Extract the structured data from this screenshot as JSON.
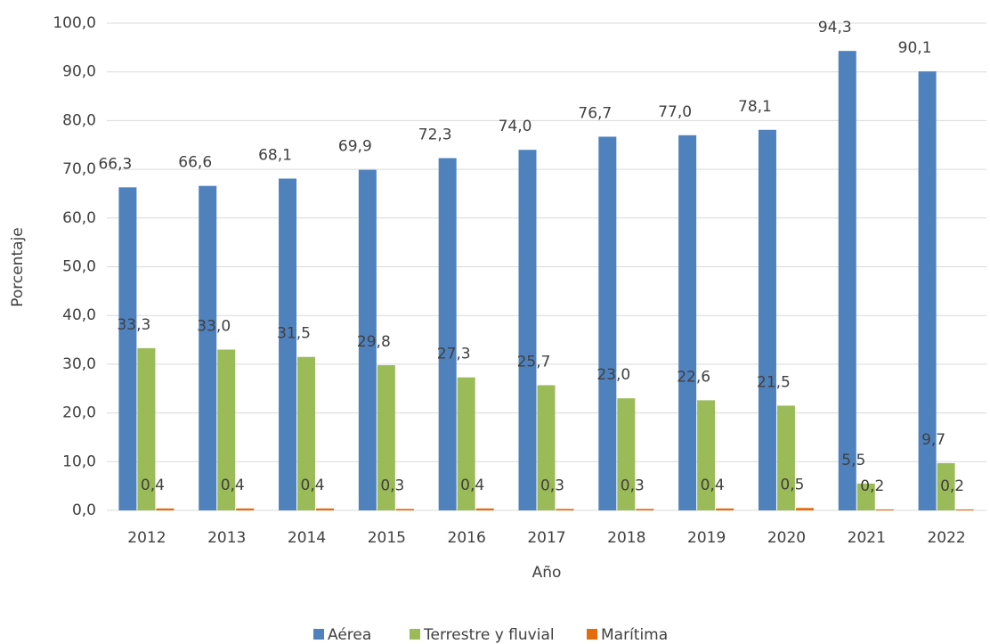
{
  "chart_data": {
    "type": "bar",
    "x_label": "Año",
    "y_label": "Porcentaje",
    "categories": [
      "2012",
      "2013",
      "2014",
      "2015",
      "2016",
      "2017",
      "2018",
      "2019",
      "2020",
      "2021",
      "2022"
    ],
    "series": [
      {
        "name": "Aérea",
        "color": "#4f81bd",
        "values": [
          66.3,
          66.6,
          68.1,
          69.9,
          72.3,
          74.0,
          76.7,
          77.0,
          78.1,
          94.3,
          90.1
        ],
        "value_labels": [
          "66,3",
          "66,6",
          "68,1",
          "69,9",
          "72,3",
          "74,0",
          "76,7",
          "77,0",
          "78,1",
          "94,3",
          "90,1"
        ]
      },
      {
        "name": "Terrestre y fluvial",
        "color": "#9bbb59",
        "values": [
          33.3,
          33.0,
          31.5,
          29.8,
          27.3,
          25.7,
          23.0,
          22.6,
          21.5,
          5.5,
          9.7
        ],
        "value_labels": [
          "33,3",
          "33,0",
          "31,5",
          "29,8",
          "27,3",
          "25,7",
          "23,0",
          "22,6",
          "21,5",
          "5,5",
          "9,7"
        ]
      },
      {
        "name": "Marítima",
        "color": "#e46c0a",
        "values": [
          0.4,
          0.4,
          0.4,
          0.3,
          0.4,
          0.3,
          0.3,
          0.4,
          0.5,
          0.2,
          0.2
        ],
        "value_labels": [
          "0,4",
          "0,4",
          "0,4",
          "0,3",
          "0,4",
          "0,3",
          "0,3",
          "0,4",
          "0,5",
          "0,2",
          "0,2"
        ]
      }
    ],
    "ylim": [
      0,
      100
    ],
    "yticks": [
      {
        "value": 0,
        "label": "0,0"
      },
      {
        "value": 10,
        "label": "10,0"
      },
      {
        "value": 20,
        "label": "20,0"
      },
      {
        "value": 30,
        "label": "30,0"
      },
      {
        "value": 40,
        "label": "40,0"
      },
      {
        "value": 50,
        "label": "50,0"
      },
      {
        "value": 60,
        "label": "60,0"
      },
      {
        "value": 70,
        "label": "70,0"
      },
      {
        "value": 80,
        "label": "80,0"
      },
      {
        "value": 90,
        "label": "90,0"
      },
      {
        "value": 100,
        "label": "100,0"
      }
    ],
    "grid": true,
    "legend": "bottom"
  }
}
